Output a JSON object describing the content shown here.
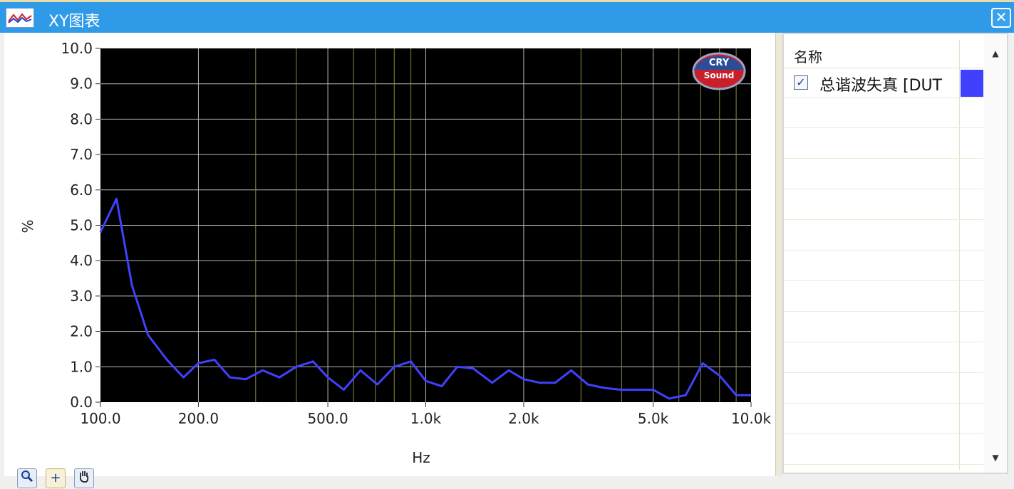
{
  "window": {
    "title": "XY图表",
    "close_label": "✕"
  },
  "legend": {
    "header": "名称",
    "items": [
      {
        "label": "总谐波失真 [DUT",
        "checked": "✓",
        "color": "#4040ff"
      }
    ],
    "scroll_up": "▲",
    "scroll_down": "▼"
  },
  "toolbar": {
    "zoom_icon": "zoom-icon",
    "cursor_icon": "crosshair-icon",
    "pan_icon": "hand-icon",
    "cursor_glyph": "+"
  },
  "logo": {
    "line1": "CRY",
    "line2": "Sound"
  },
  "chart_data": {
    "type": "line",
    "xscale": "log",
    "xlim": [
      100,
      10000
    ],
    "ylim": [
      0,
      10
    ],
    "xlabel": "Hz",
    "ylabel": "%",
    "y_ticks": [
      "0.0",
      "1.0",
      "2.0",
      "3.0",
      "4.0",
      "5.0",
      "6.0",
      "7.0",
      "8.0",
      "9.0",
      "10.0"
    ],
    "x_ticks": [
      {
        "value": 100,
        "label": "100.0"
      },
      {
        "value": 200,
        "label": "200.0"
      },
      {
        "value": 500,
        "label": "500.0"
      },
      {
        "value": 1000,
        "label": "1.0k"
      },
      {
        "value": 2000,
        "label": "2.0k"
      },
      {
        "value": 5000,
        "label": "5.0k"
      },
      {
        "value": 10000,
        "label": "10.0k"
      }
    ],
    "grid": true,
    "background": "#000000",
    "series": [
      {
        "color": "#4040ff",
        "x": [
          100,
          112,
          125,
          140,
          160,
          180,
          200,
          224,
          250,
          280,
          315,
          355,
          400,
          450,
          500,
          560,
          630,
          710,
          800,
          900,
          1000,
          1120,
          1250,
          1400,
          1600,
          1800,
          2000,
          2240,
          2500,
          2800,
          3150,
          3550,
          4000,
          4500,
          5000,
          5600,
          6300,
          7100,
          8000,
          9000,
          10000
        ],
        "y": [
          4.8,
          5.75,
          3.3,
          1.9,
          1.2,
          0.7,
          1.1,
          1.2,
          0.7,
          0.65,
          0.9,
          0.7,
          1.0,
          1.15,
          0.7,
          0.35,
          0.9,
          0.5,
          1.0,
          1.15,
          0.6,
          0.45,
          1.0,
          0.95,
          0.55,
          0.9,
          0.65,
          0.55,
          0.55,
          0.9,
          0.5,
          0.4,
          0.35,
          0.35,
          0.35,
          0.1,
          0.2,
          1.1,
          0.75,
          0.2,
          0.2
        ]
      }
    ]
  }
}
